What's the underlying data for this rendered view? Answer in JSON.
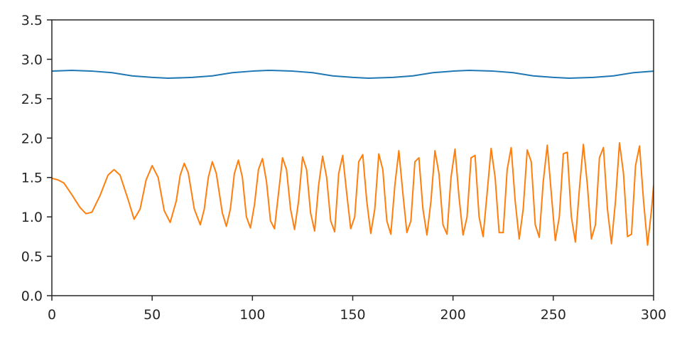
{
  "chart_data": {
    "type": "line",
    "title": "",
    "xlabel": "",
    "ylabel": "",
    "xlim": [
      0,
      300
    ],
    "ylim": [
      0,
      3.5
    ],
    "x_ticks": [
      0,
      50,
      100,
      150,
      200,
      250,
      300
    ],
    "y_ticks": [
      0.0,
      0.5,
      1.0,
      1.5,
      2.0,
      2.5,
      3.0,
      3.5
    ],
    "x_tick_labels": [
      "0",
      "50",
      "100",
      "150",
      "200",
      "250",
      "300"
    ],
    "y_tick_labels": [
      "0.0",
      "0.5",
      "1.0",
      "1.5",
      "2.0",
      "2.5",
      "3.0",
      "3.5"
    ],
    "grid": false,
    "legend": "none",
    "series": [
      {
        "color": "#1f77b4",
        "points": [
          [
            0,
            2.85
          ],
          [
            10,
            2.86
          ],
          [
            20,
            2.85
          ],
          [
            30,
            2.83
          ],
          [
            40,
            2.79
          ],
          [
            50,
            2.77
          ],
          [
            58,
            2.76
          ],
          [
            70,
            2.77
          ],
          [
            80,
            2.79
          ],
          [
            90,
            2.83
          ],
          [
            100,
            2.85
          ],
          [
            108,
            2.86
          ],
          [
            120,
            2.85
          ],
          [
            130,
            2.83
          ],
          [
            140,
            2.79
          ],
          [
            150,
            2.77
          ],
          [
            158,
            2.76
          ],
          [
            170,
            2.77
          ],
          [
            180,
            2.79
          ],
          [
            190,
            2.83
          ],
          [
            200,
            2.85
          ],
          [
            208,
            2.86
          ],
          [
            220,
            2.85
          ],
          [
            230,
            2.83
          ],
          [
            240,
            2.79
          ],
          [
            250,
            2.77
          ],
          [
            258,
            2.76
          ],
          [
            270,
            2.77
          ],
          [
            280,
            2.79
          ],
          [
            290,
            2.83
          ],
          [
            300,
            2.85
          ]
        ]
      },
      {
        "color": "#ff7f0e",
        "points": [
          [
            0,
            1.49
          ],
          [
            3,
            1.47
          ],
          [
            6,
            1.43
          ],
          [
            10,
            1.28
          ],
          [
            14,
            1.12
          ],
          [
            17,
            1.04
          ],
          [
            20,
            1.06
          ],
          [
            24,
            1.27
          ],
          [
            28,
            1.53
          ],
          [
            31,
            1.6
          ],
          [
            34,
            1.53
          ],
          [
            38,
            1.22
          ],
          [
            41,
            0.97
          ],
          [
            44,
            1.1
          ],
          [
            47,
            1.47
          ],
          [
            50,
            1.65
          ],
          [
            53,
            1.5
          ],
          [
            56,
            1.08
          ],
          [
            59,
            0.93
          ],
          [
            62,
            1.2
          ],
          [
            64,
            1.53
          ],
          [
            66,
            1.68
          ],
          [
            68,
            1.56
          ],
          [
            71,
            1.1
          ],
          [
            74,
            0.9
          ],
          [
            76,
            1.1
          ],
          [
            78,
            1.5
          ],
          [
            80,
            1.7
          ],
          [
            82,
            1.55
          ],
          [
            85,
            1.05
          ],
          [
            87,
            0.88
          ],
          [
            89,
            1.1
          ],
          [
            91,
            1.55
          ],
          [
            93,
            1.72
          ],
          [
            95,
            1.5
          ],
          [
            97,
            1.0
          ],
          [
            99,
            0.86
          ],
          [
            101,
            1.15
          ],
          [
            103,
            1.6
          ],
          [
            105,
            1.74
          ],
          [
            107,
            1.45
          ],
          [
            109,
            0.95
          ],
          [
            111,
            0.85
          ],
          [
            113,
            1.3
          ],
          [
            115,
            1.75
          ],
          [
            117,
            1.6
          ],
          [
            119,
            1.1
          ],
          [
            121,
            0.84
          ],
          [
            123,
            1.2
          ],
          [
            125,
            1.76
          ],
          [
            127,
            1.6
          ],
          [
            129,
            1.05
          ],
          [
            131,
            0.82
          ],
          [
            133,
            1.4
          ],
          [
            135,
            1.77
          ],
          [
            137,
            1.5
          ],
          [
            139,
            0.95
          ],
          [
            141,
            0.81
          ],
          [
            143,
            1.55
          ],
          [
            145,
            1.78
          ],
          [
            147,
            1.3
          ],
          [
            149,
            0.85
          ],
          [
            151,
            1.0
          ],
          [
            153,
            1.7
          ],
          [
            155,
            1.79
          ],
          [
            157,
            1.2
          ],
          [
            159,
            0.79
          ],
          [
            161,
            1.1
          ],
          [
            163,
            1.8
          ],
          [
            165,
            1.6
          ],
          [
            167,
            0.95
          ],
          [
            169,
            0.78
          ],
          [
            171,
            1.4
          ],
          [
            173,
            1.84
          ],
          [
            175,
            1.3
          ],
          [
            177,
            0.8
          ],
          [
            179,
            0.95
          ],
          [
            181,
            1.7
          ],
          [
            183,
            1.75
          ],
          [
            185,
            1.1
          ],
          [
            187,
            0.77
          ],
          [
            189,
            1.2
          ],
          [
            191,
            1.84
          ],
          [
            193,
            1.55
          ],
          [
            195,
            0.9
          ],
          [
            197,
            0.78
          ],
          [
            199,
            1.5
          ],
          [
            201,
            1.86
          ],
          [
            203,
            1.25
          ],
          [
            205,
            0.77
          ],
          [
            207,
            1.0
          ],
          [
            209,
            1.75
          ],
          [
            211,
            1.78
          ],
          [
            213,
            1.0
          ],
          [
            215,
            0.75
          ],
          [
            217,
            1.3
          ],
          [
            219,
            1.87
          ],
          [
            221,
            1.5
          ],
          [
            223,
            0.8
          ],
          [
            225,
            0.8
          ],
          [
            227,
            1.6
          ],
          [
            229,
            1.88
          ],
          [
            231,
            1.2
          ],
          [
            233,
            0.72
          ],
          [
            235,
            1.1
          ],
          [
            237,
            1.85
          ],
          [
            239,
            1.7
          ],
          [
            241,
            0.9
          ],
          [
            243,
            0.74
          ],
          [
            245,
            1.45
          ],
          [
            247,
            1.91
          ],
          [
            249,
            1.3
          ],
          [
            251,
            0.7
          ],
          [
            253,
            1.0
          ],
          [
            255,
            1.8
          ],
          [
            257,
            1.82
          ],
          [
            259,
            1.0
          ],
          [
            261,
            0.68
          ],
          [
            263,
            1.35
          ],
          [
            265,
            1.92
          ],
          [
            267,
            1.4
          ],
          [
            269,
            0.72
          ],
          [
            271,
            0.9
          ],
          [
            273,
            1.75
          ],
          [
            275,
            1.88
          ],
          [
            277,
            1.1
          ],
          [
            279,
            0.66
          ],
          [
            281,
            1.2
          ],
          [
            283,
            1.94
          ],
          [
            285,
            1.55
          ],
          [
            287,
            0.75
          ],
          [
            289,
            0.78
          ],
          [
            291,
            1.65
          ],
          [
            293,
            1.9
          ],
          [
            295,
            1.2
          ],
          [
            297,
            0.64
          ],
          [
            299,
            1.1
          ],
          [
            300,
            1.4
          ]
        ]
      }
    ]
  }
}
